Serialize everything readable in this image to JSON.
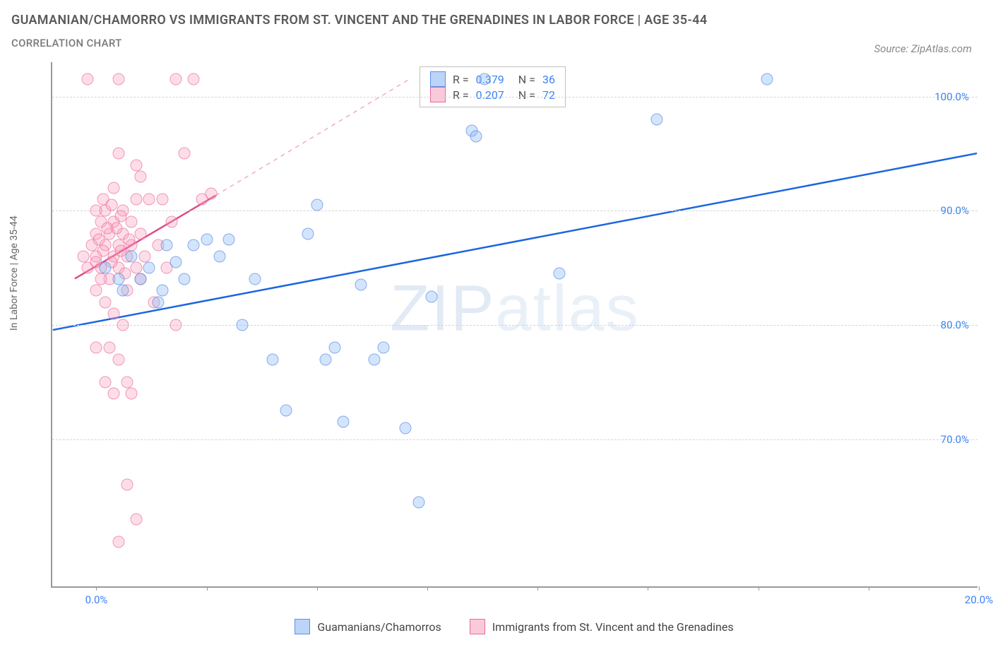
{
  "title": "GUAMANIAN/CHAMORRO VS IMMIGRANTS FROM ST. VINCENT AND THE GRENADINES IN LABOR FORCE | AGE 35-44",
  "subtitle": "CORRELATION CHART",
  "source": "Source: ZipAtlas.com",
  "watermark_bold": "ZIP",
  "watermark_thin": "atlas",
  "chart": {
    "type": "scatter",
    "ylabel": "In Labor Force | Age 35-44",
    "xlim": [
      -1,
      20
    ],
    "ylim": [
      57,
      103
    ],
    "yticks": [
      70,
      80,
      90,
      100
    ],
    "ytick_labels": [
      "70.0%",
      "80.0%",
      "90.0%",
      "100.0%"
    ],
    "xticks": [
      0,
      2.5,
      5,
      7.5,
      10,
      12.5,
      15,
      17.5,
      20
    ],
    "xtick_labels": {
      "0": "0.0%",
      "20": "20.0%"
    },
    "series_blue": {
      "name": "Guamanians/Chamorros",
      "color_fill": "rgba(130,180,245,0.35)",
      "color_stroke": "rgba(80,130,220,0.6)",
      "R": "0.379",
      "N": "36",
      "trend": {
        "x1": -1,
        "y1": 79.5,
        "x2": 20,
        "y2": 95,
        "color": "#1a66e0",
        "width": 2.5,
        "dash": "none"
      },
      "points": [
        [
          0.2,
          85
        ],
        [
          0.6,
          83
        ],
        [
          0.8,
          86
        ],
        [
          1.0,
          84
        ],
        [
          1.2,
          85
        ],
        [
          1.4,
          82
        ],
        [
          1.6,
          87
        ],
        [
          1.8,
          85.5
        ],
        [
          2.2,
          87
        ],
        [
          2.5,
          87.5
        ],
        [
          2.8,
          86
        ],
        [
          3.0,
          87.5
        ],
        [
          3.6,
          84
        ],
        [
          3.3,
          80
        ],
        [
          4.0,
          77
        ],
        [
          4.3,
          72.5
        ],
        [
          4.8,
          88
        ],
        [
          5.0,
          90.5
        ],
        [
          5.2,
          77
        ],
        [
          5.4,
          78
        ],
        [
          5.6,
          71.5
        ],
        [
          6.0,
          83.5
        ],
        [
          6.3,
          77
        ],
        [
          6.5,
          78
        ],
        [
          7.0,
          71
        ],
        [
          7.3,
          64.5
        ],
        [
          7.6,
          82.5
        ],
        [
          8.5,
          97
        ],
        [
          8.6,
          96.5
        ],
        [
          8.8,
          101.5
        ],
        [
          10.5,
          84.5
        ],
        [
          12.7,
          98
        ],
        [
          15.2,
          101.5
        ],
        [
          1.5,
          83
        ],
        [
          2.0,
          84
        ],
        [
          0.5,
          84
        ]
      ]
    },
    "series_pink": {
      "name": "Immigrants from St. Vincent and the Grenadines",
      "color_fill": "rgba(250,160,190,0.35)",
      "color_stroke": "rgba(230,100,150,0.6)",
      "R": "0.207",
      "N": "72",
      "trend_solid": {
        "x1": -0.5,
        "y1": 84,
        "x2": 2.7,
        "y2": 91.3,
        "color": "#e04a8a",
        "width": 2.5
      },
      "trend_dash": {
        "x1": 2.7,
        "y1": 91.3,
        "x2": 7.1,
        "y2": 101.5,
        "color": "#f5a8c3",
        "width": 1.5
      },
      "points": [
        [
          -0.3,
          86
        ],
        [
          -0.2,
          85
        ],
        [
          -0.1,
          87
        ],
        [
          0.0,
          88
        ],
        [
          0.0,
          86
        ],
        [
          0.1,
          89
        ],
        [
          0.1,
          85
        ],
        [
          0.2,
          87
        ],
        [
          0.2,
          90
        ],
        [
          0.3,
          88
        ],
        [
          0.3,
          84
        ],
        [
          0.4,
          86
        ],
        [
          0.4,
          89
        ],
        [
          0.5,
          87
        ],
        [
          0.5,
          85
        ],
        [
          0.6,
          88
        ],
        [
          0.6,
          90
        ],
        [
          0.7,
          86
        ],
        [
          0.7,
          83
        ],
        [
          0.8,
          87
        ],
        [
          0.8,
          89
        ],
        [
          0.9,
          85
        ],
        [
          0.9,
          91
        ],
        [
          1.0,
          88
        ],
        [
          1.0,
          84
        ],
        [
          1.1,
          86
        ],
        [
          1.2,
          91
        ],
        [
          1.3,
          82
        ],
        [
          1.4,
          87
        ],
        [
          1.5,
          91
        ],
        [
          1.6,
          85
        ],
        [
          1.7,
          89
        ],
        [
          1.8,
          80
        ],
        [
          0.0,
          83
        ],
        [
          0.2,
          82
        ],
        [
          0.4,
          81
        ],
        [
          0.6,
          80
        ],
        [
          0.3,
          78
        ],
        [
          0.5,
          77
        ],
        [
          0.7,
          75
        ],
        [
          0.4,
          74
        ],
        [
          0.8,
          74
        ],
        [
          0.2,
          75
        ],
        [
          0.0,
          78
        ],
        [
          0.5,
          95
        ],
        [
          0.9,
          94
        ],
        [
          1.0,
          93
        ],
        [
          0.4,
          92
        ],
        [
          0.7,
          66
        ],
        [
          0.9,
          63
        ],
        [
          0.5,
          61
        ],
        [
          -0.2,
          101.5
        ],
        [
          0.5,
          101.5
        ],
        [
          1.8,
          101.5
        ],
        [
          2.2,
          101.5
        ],
        [
          2.0,
          95
        ],
        [
          2.4,
          91
        ],
        [
          2.6,
          91.5
        ],
        [
          0.0,
          90
        ],
        [
          0.15,
          91
        ],
        [
          0.35,
          90.5
        ],
        [
          0.55,
          89.5
        ],
        [
          0.15,
          86.5
        ],
        [
          0.35,
          85.5
        ],
        [
          0.55,
          86.5
        ],
        [
          0.75,
          87.5
        ],
        [
          0.45,
          88.5
        ],
        [
          0.65,
          84.5
        ],
        [
          0.25,
          88.5
        ],
        [
          0.1,
          84
        ],
        [
          0.05,
          87.5
        ],
        [
          0.0,
          85.5
        ]
      ]
    },
    "legend_bottom": [
      {
        "swatch": "blue",
        "label": "Guamanians/Chamorros"
      },
      {
        "swatch": "pink",
        "label": "Immigrants from St. Vincent and the Grenadines"
      }
    ],
    "bg": "#ffffff",
    "grid_color": "#d5d5d5"
  }
}
